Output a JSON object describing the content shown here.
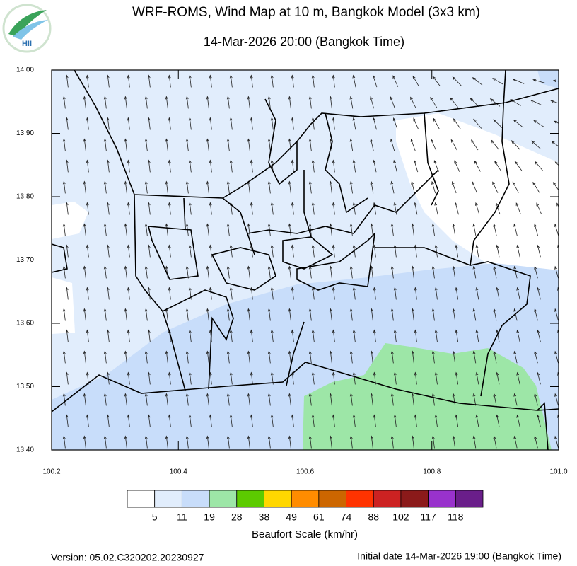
{
  "title": "WRF-ROMS, Wind Map at 10 m, Bangkok Model (3x3 km)",
  "subtitle": "14-Mar-2026 20:00 (Bangkok Time)",
  "logo_text": "HII",
  "chart_data": {
    "type": "map",
    "xlim": [
      100.2,
      101.0
    ],
    "ylim": [
      13.4,
      14.0
    ],
    "xticks": [
      100.2,
      100.4,
      100.6,
      100.8,
      {
        "value": 101,
        "label": "101.0"
      }
    ],
    "yticks": [
      {
        "value": 13.4,
        "label": "13.40"
      },
      {
        "value": 13.5,
        "label": "13.50"
      },
      {
        "value": 13.6,
        "label": "13.60"
      },
      {
        "value": 13.7,
        "label": "13.70"
      },
      {
        "value": 13.8,
        "label": "13.80"
      },
      {
        "value": 13.9,
        "label": "13.90"
      },
      {
        "value": 14,
        "label": "14.00"
      }
    ],
    "colorbar": {
      "label": "Beaufort Scale (km/hr)",
      "colors": [
        "#ffffff",
        "#e1edfc",
        "#c8ddfa",
        "#9de6a7",
        "#5ccb00",
        "#ffd700",
        "#ff8c00",
        "#cc6600",
        "#ff3300",
        "#cc2222",
        "#8b1a1a",
        "#9932cc",
        "#6a1e8a"
      ],
      "ticks": [
        5,
        11,
        19,
        28,
        38,
        49,
        61,
        74,
        88,
        102,
        117,
        118
      ]
    }
  },
  "footer": {
    "version": "Version: 05.02.C320202.20230927",
    "initial": "Initial date 14-Mar-2026 19:00 (Bangkok Time)"
  }
}
